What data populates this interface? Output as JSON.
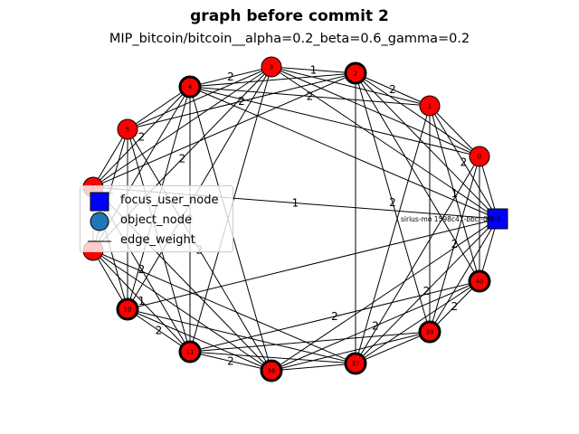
{
  "figure": {
    "title": "graph before commit 2",
    "subtitle": "MIP_bitcoin/bitcoin__alpha=0.2_beta=0.6_gamma=0.2"
  },
  "legend": {
    "items": [
      {
        "label": "focus_user_node",
        "shape": "square",
        "color": "#0000ff"
      },
      {
        "label": "object_node",
        "shape": "circle",
        "color": "#1f77b4"
      },
      {
        "label": "edge_weight",
        "shape": "line",
        "color": "#000000"
      }
    ]
  },
  "colors": {
    "node_fill": "#ff0000",
    "focus_fill": "#0000ff",
    "edge": "#000000"
  },
  "nodes": [
    {
      "id": "3",
      "label": "3",
      "bold_border": false
    },
    {
      "id": "2",
      "label": "2",
      "bold_border": true
    },
    {
      "id": "1",
      "label": "1",
      "bold_border": false
    },
    {
      "id": "0",
      "label": "0",
      "bold_border": false
    },
    {
      "id": "4",
      "label": "4",
      "bold_border": true
    },
    {
      "id": "5",
      "label": "5",
      "bold_border": false
    },
    {
      "id": "6",
      "label": "6",
      "bold_border": false
    },
    {
      "id": "7",
      "label": "7",
      "bold_border": false
    },
    {
      "id": "10",
      "label": "10",
      "bold_border": true
    },
    {
      "id": "11",
      "label": "11",
      "bold_border": true
    },
    {
      "id": "36",
      "label": "36",
      "bold_border": true
    },
    {
      "id": "37",
      "label": "37",
      "bold_border": true
    },
    {
      "id": "39",
      "label": "39",
      "bold_border": true
    },
    {
      "id": "40",
      "label": "40",
      "bold_border": true
    }
  ],
  "focus_node": {
    "label": "sirius-mo 1598c47-bbc -0f8-9"
  }
}
